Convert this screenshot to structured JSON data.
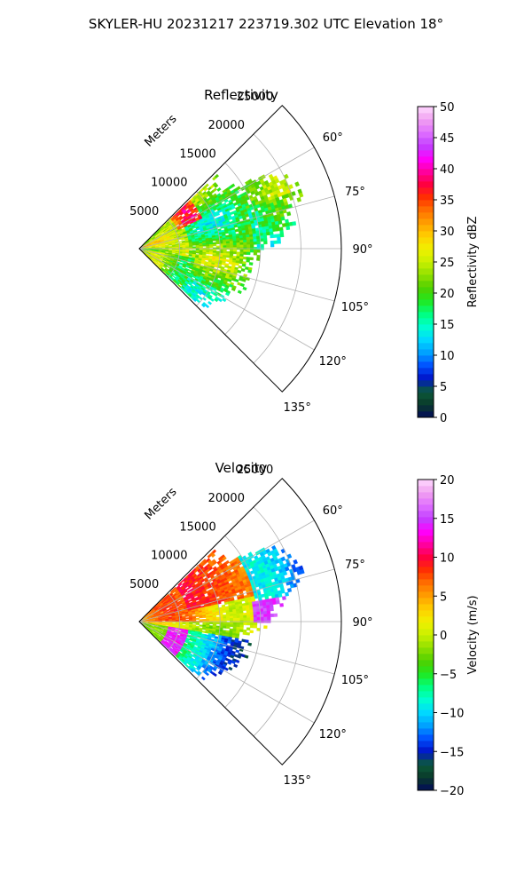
{
  "figure": {
    "title": "SKYLER-HU  20231217  223719.302 UTC Elevation 18°"
  },
  "colors": {
    "reflectivity": [
      "#020b5a",
      "#0a3a2a",
      "#0b5a3a",
      "#0014c8",
      "#0050ff",
      "#00a0ff",
      "#00d8ff",
      "#00ffd0",
      "#00ff80",
      "#20e820",
      "#50d000",
      "#90e000",
      "#c8f000",
      "#f0f000",
      "#ffd000",
      "#ffa000",
      "#ff7000",
      "#ff3000",
      "#ff0040",
      "#ff00a0",
      "#ff00ff",
      "#c040ff",
      "#e070ff",
      "#f0a0f0",
      "#ffd8ff"
    ],
    "velocity": [
      "#020b5a",
      "#0a3a2a",
      "#0b5a3a",
      "#0014c8",
      "#0050ff",
      "#00a0ff",
      "#00d8ff",
      "#00ffd0",
      "#00ff80",
      "#20e820",
      "#50d000",
      "#90e000",
      "#c8f000",
      "#f0f000",
      "#ffd000",
      "#ffa000",
      "#ff7000",
      "#ff3000",
      "#ff0040",
      "#ff00a0",
      "#ff00ff",
      "#c040ff",
      "#e070ff",
      "#f0a0f0",
      "#ffd8ff"
    ]
  },
  "chart_data": [
    {
      "type": "heatmap",
      "title": "Reflectivity",
      "projection": "polar-sector",
      "radial_label": "Meters",
      "radial_ticks": [
        5000,
        10000,
        15000,
        20000,
        25000
      ],
      "radial_tick_labels": [
        "5000",
        "10000",
        "15000",
        "20000",
        "25000"
      ],
      "rmax": 25000,
      "azimuth_range": [
        45,
        135
      ],
      "azimuth_ticks": [
        60,
        75,
        90,
        105,
        120,
        135
      ],
      "azimuth_tick_labels": [
        "60°",
        "75°",
        "90°",
        "105°",
        "120°",
        "135°"
      ],
      "colorbar": {
        "label": "Reflectivity dBZ",
        "range": [
          0,
          50
        ],
        "ticks": [
          0,
          5,
          10,
          15,
          20,
          25,
          30,
          35,
          40,
          45,
          50
        ],
        "tick_labels": [
          "0",
          "5",
          "10",
          "15",
          "20",
          "25",
          "30",
          "35",
          "40",
          "45",
          "50"
        ]
      },
      "echo_extent": [
        {
          "azimuth": 55,
          "range_max": 13000
        },
        {
          "azimuth": 62,
          "range_max": 20000
        },
        {
          "azimuth": 70,
          "range_max": 21500
        },
        {
          "azimuth": 78,
          "range_max": 20000
        },
        {
          "azimuth": 86,
          "range_max": 18000
        },
        {
          "azimuth": 94,
          "range_max": 15000
        },
        {
          "azimuth": 102,
          "range_max": 14000
        },
        {
          "azimuth": 110,
          "range_max": 14000
        },
        {
          "azimuth": 118,
          "range_max": 13000
        },
        {
          "azimuth": 126,
          "range_max": 11000
        }
      ],
      "features": [
        {
          "label_value_dbz": 35,
          "azimuth": 58,
          "range": 7000
        },
        {
          "label_value_dbz": 25,
          "azimuth": 90,
          "range": 4000
        }
      ]
    },
    {
      "type": "heatmap",
      "title": "Velocity",
      "projection": "polar-sector",
      "radial_label": "Meters",
      "radial_ticks": [
        5000,
        10000,
        15000,
        20000,
        25000
      ],
      "radial_tick_labels": [
        "5000",
        "10000",
        "15000",
        "20000",
        "25000"
      ],
      "rmax": 25000,
      "azimuth_range": [
        45,
        135
      ],
      "azimuth_ticks": [
        60,
        75,
        90,
        105,
        120,
        135
      ],
      "azimuth_tick_labels": [
        "60°",
        "75°",
        "90°",
        "105°",
        "120°",
        "135°"
      ],
      "colorbar": {
        "label": "Velocity (m/s)",
        "range": [
          -20,
          20
        ],
        "ticks": [
          -20,
          -15,
          -10,
          -5,
          0,
          5,
          10,
          15,
          20
        ],
        "tick_labels": [
          "−20",
          "−15",
          "−10",
          "−5",
          "0",
          "5",
          "10",
          "15",
          "20"
        ]
      },
      "echo_extent": [
        {
          "azimuth": 55,
          "range_max": 13000
        },
        {
          "azimuth": 62,
          "range_max": 20000
        },
        {
          "azimuth": 70,
          "range_max": 21500
        },
        {
          "azimuth": 78,
          "range_max": 20000
        },
        {
          "azimuth": 86,
          "range_max": 18000
        },
        {
          "azimuth": 94,
          "range_max": 15000
        },
        {
          "azimuth": 102,
          "range_max": 14000
        },
        {
          "azimuth": 110,
          "range_max": 14000
        },
        {
          "azimuth": 118,
          "range_max": 13000
        },
        {
          "azimuth": 126,
          "range_max": 11000
        }
      ],
      "features": [
        {
          "velocity_ms": 11,
          "azimuth": 70,
          "range": 9000
        },
        {
          "velocity_ms": -12,
          "azimuth": 66,
          "range": 18000
        },
        {
          "velocity_ms": 15,
          "azimuth": 85,
          "range": 16000
        },
        {
          "velocity_ms": -11,
          "azimuth": 110,
          "range": 8000
        },
        {
          "velocity_ms": 2,
          "azimuth": 98,
          "range": 10000
        }
      ]
    }
  ]
}
